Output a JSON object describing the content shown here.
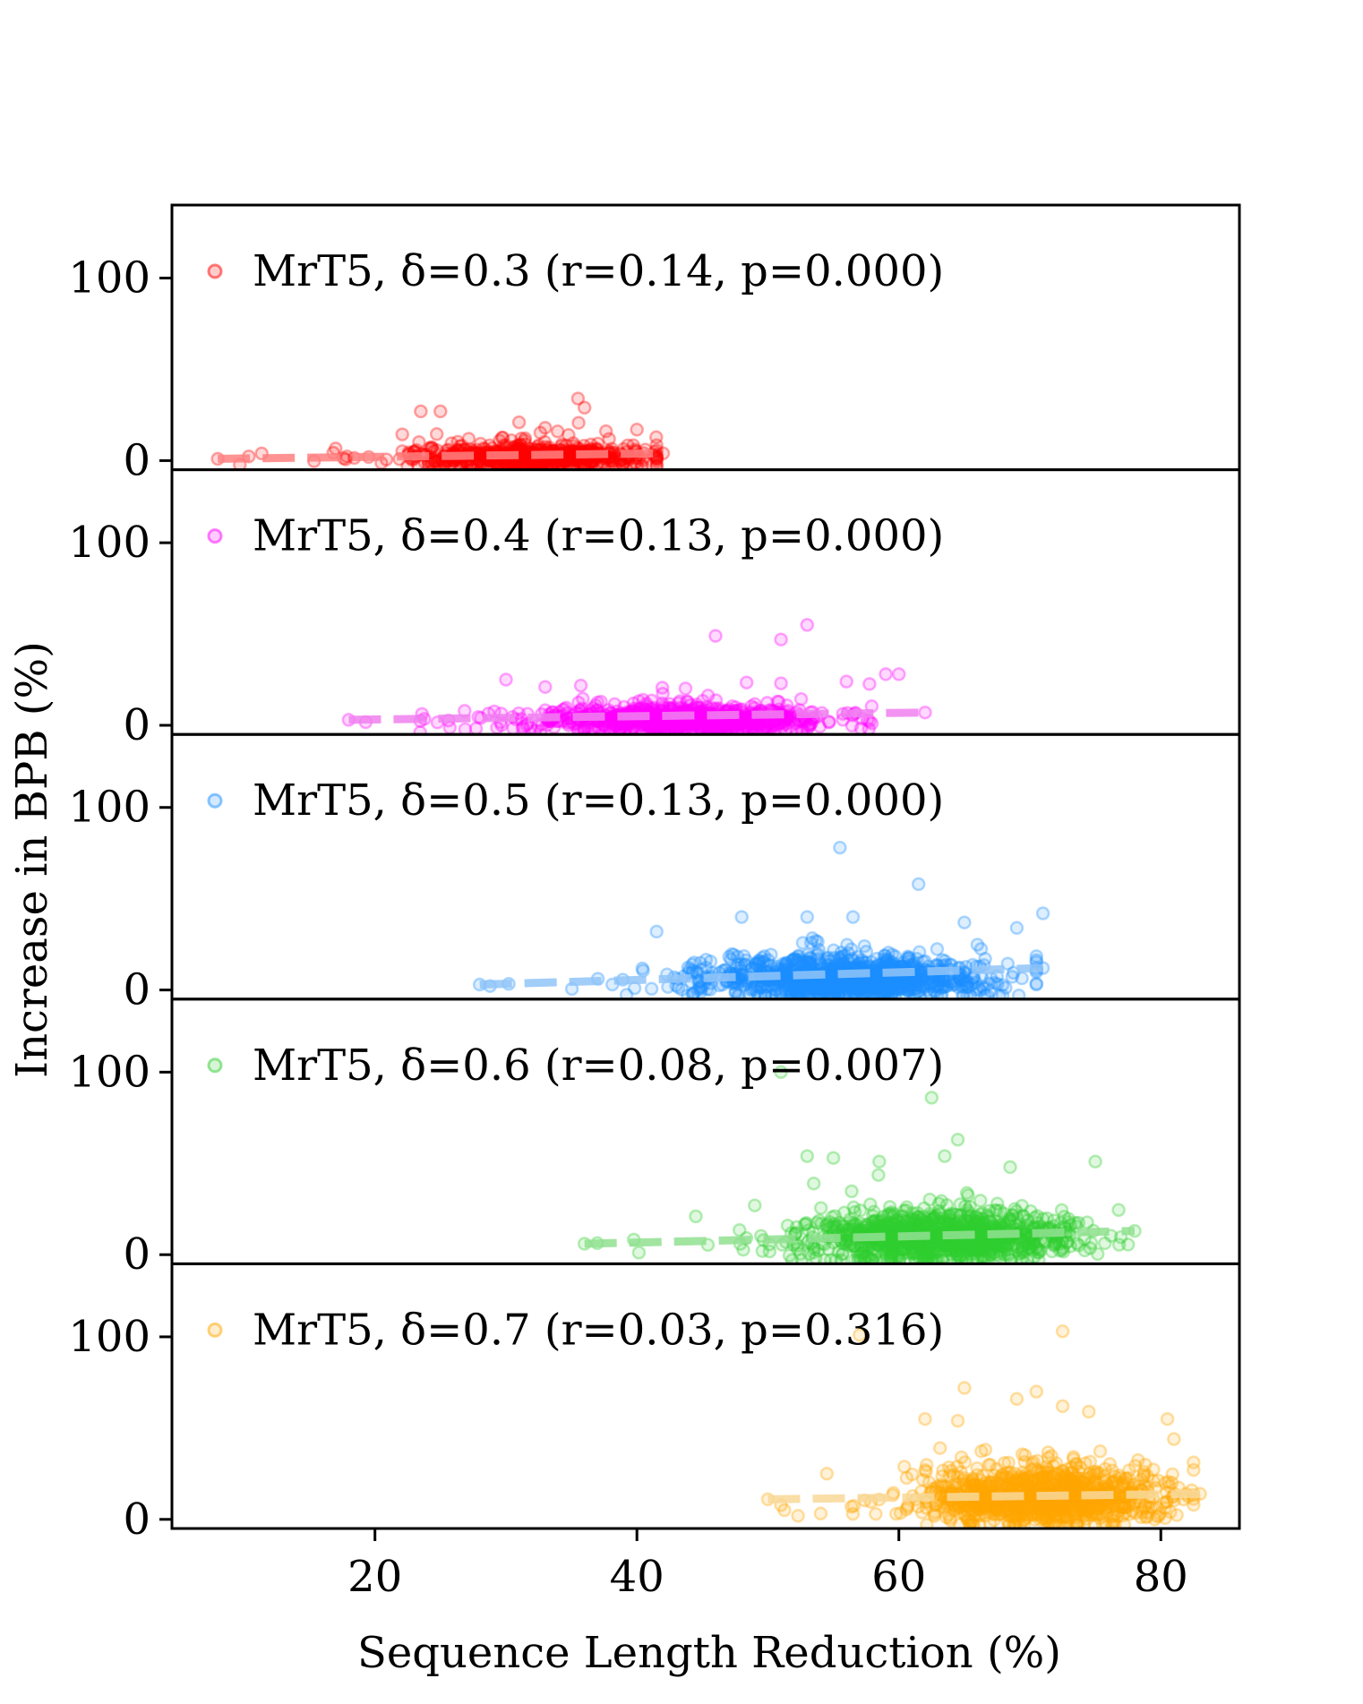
{
  "chart_data": {
    "type": "scatter",
    "xlabel": "Sequence Length Reduction (%)",
    "ylabel": "Increase in BPB (%)",
    "xlim": [
      4.5,
      86
    ],
    "ylim": [
      -5,
      140
    ],
    "x_ticks": [
      20,
      40,
      60,
      80
    ],
    "y_ticks": [
      0,
      100
    ],
    "x_tick_labels": [
      "20",
      "40",
      "60",
      "80"
    ],
    "y_tick_labels": [
      "0",
      "100"
    ],
    "panels": [
      {
        "name": "MrT5, δ=0.3",
        "label": "MrT5, δ=0.3 (r=0.14, p=0.000)",
        "color": "#ff0000",
        "fit_color": "#ff8080",
        "r": 0.14,
        "p": 0.0,
        "x_range": [
          8,
          42
        ],
        "x_center": 32,
        "x_spread": 4.5,
        "y_center": 2,
        "y_spread": 3,
        "n_points": 700,
        "fit_line": [
          [
            8,
            1
          ],
          [
            42,
            4
          ]
        ],
        "outliers": [
          [
            35.5,
            34
          ],
          [
            36,
            29
          ],
          [
            23.5,
            27
          ],
          [
            25,
            27
          ],
          [
            31,
            21
          ],
          [
            33,
            18
          ],
          [
            40,
            17
          ]
        ]
      },
      {
        "name": "MrT5, δ=0.4",
        "label": "MrT5, δ=0.4 (r=0.13, p=0.000)",
        "color": "#ff00ff",
        "fit_color": "#f080f0",
        "r": 0.13,
        "p": 0.0,
        "x_range": [
          18,
          62
        ],
        "x_center": 43,
        "x_spread": 5.5,
        "y_center": 3,
        "y_spread": 3.5,
        "n_points": 900,
        "fit_line": [
          [
            18,
            3
          ],
          [
            62,
            7
          ]
        ],
        "outliers": [
          [
            53,
            55
          ],
          [
            46,
            49
          ],
          [
            51,
            47
          ],
          [
            59,
            28
          ],
          [
            60,
            28
          ],
          [
            30,
            25
          ],
          [
            51,
            23
          ],
          [
            56,
            24
          ],
          [
            33,
            21
          ]
        ]
      },
      {
        "name": "MrT5, δ=0.5",
        "label": "MrT5, δ=0.5 (r=0.13, p=0.000)",
        "color": "#1e90ff",
        "fit_color": "#90c4f8",
        "r": 0.13,
        "p": 0.0,
        "x_range": [
          28,
          71
        ],
        "x_center": 56,
        "x_spread": 5.5,
        "y_center": 6,
        "y_spread": 6,
        "n_points": 1100,
        "fit_line": [
          [
            28,
            3
          ],
          [
            71,
            12
          ]
        ],
        "outliers": [
          [
            55.5,
            78
          ],
          [
            61.5,
            58
          ],
          [
            53,
            40
          ],
          [
            48,
            40
          ],
          [
            71,
            42
          ],
          [
            69,
            34
          ],
          [
            41.5,
            32
          ],
          [
            56.5,
            40
          ],
          [
            65,
            37
          ]
        ]
      },
      {
        "name": "MrT5, δ=0.6",
        "label": "MrT5, δ=0.6 (r=0.08, p=0.007)",
        "color": "#32cd32",
        "fit_color": "#90e090",
        "r": 0.08,
        "p": 0.007,
        "x_range": [
          36,
          78
        ],
        "x_center": 63,
        "x_spread": 5,
        "y_center": 9,
        "y_spread": 7,
        "n_points": 1100,
        "fit_line": [
          [
            36,
            6
          ],
          [
            78,
            13
          ]
        ],
        "outliers": [
          [
            51,
            100
          ],
          [
            62.5,
            86
          ],
          [
            64.5,
            63
          ],
          [
            53,
            54
          ],
          [
            55,
            53
          ],
          [
            58.5,
            51
          ],
          [
            63.5,
            54
          ],
          [
            75,
            51
          ],
          [
            68.5,
            48
          ],
          [
            53.5,
            39
          ],
          [
            44.5,
            21
          ],
          [
            49,
            27
          ]
        ]
      },
      {
        "name": "MrT5, δ=0.7",
        "label": "MrT5, δ=0.7 (r=0.03, p=0.316)",
        "color": "#ffa500",
        "fit_color": "#f8d898",
        "r": 0.03,
        "p": 0.316,
        "x_range": [
          50,
          83
        ],
        "x_center": 71,
        "x_spread": 4.5,
        "y_center": 12,
        "y_spread": 8,
        "n_points": 1100,
        "fit_line": [
          [
            50,
            11
          ],
          [
            83,
            14
          ]
        ],
        "outliers": [
          [
            72.5,
            103
          ],
          [
            57,
            101
          ],
          [
            65,
            72
          ],
          [
            70.5,
            70
          ],
          [
            69,
            66
          ],
          [
            72.5,
            62
          ],
          [
            74.5,
            59
          ],
          [
            64.5,
            54
          ],
          [
            62,
            55
          ],
          [
            80.5,
            55
          ],
          [
            81,
            44
          ],
          [
            54.5,
            25
          ],
          [
            62,
            27
          ]
        ]
      }
    ]
  }
}
